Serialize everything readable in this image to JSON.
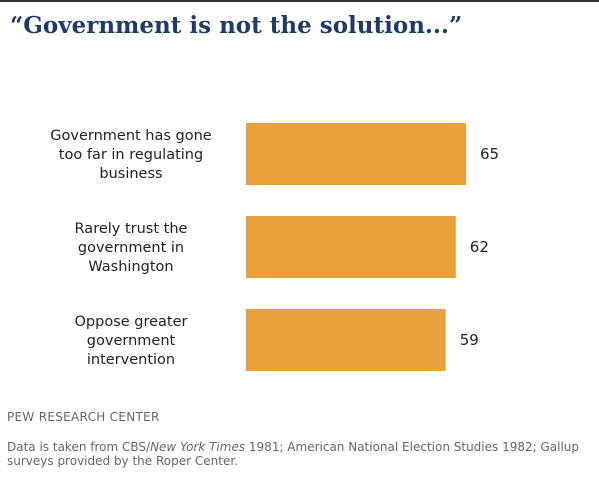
{
  "title": "“Government is not the solution...”",
  "chart_data": {
    "type": "bar",
    "orientation": "horizontal",
    "categories": [
      [
        "Government has gone",
        "too far in regulating",
        "business"
      ],
      [
        "Rarely trust the",
        "government in",
        "Washington"
      ],
      [
        "Oppose greater",
        "government",
        "intervention"
      ]
    ],
    "values": [
      65,
      62,
      59
    ],
    "bar_color": "#e8a03c"
  },
  "source": "PEW RESEARCH  CENTER",
  "note": {
    "prefix": "Data is taken from CBS/",
    "italic": "New  York Times",
    "suffix": " 1981;  American National Election Studies 1982; Gallup surveys  provided by the Roper Center."
  }
}
